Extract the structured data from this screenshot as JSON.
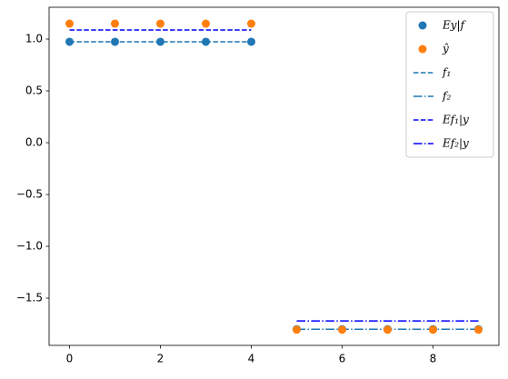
{
  "chart_data": {
    "type": "line",
    "xlim": [
      -0.45,
      9.45
    ],
    "xticks": [
      0,
      2,
      4,
      6,
      8
    ],
    "ylim": [
      -1.956,
      1.307
    ],
    "yticks": [
      {
        "value": -1.5,
        "label": "−1.5"
      },
      {
        "value": -1.0,
        "label": "−1.0"
      },
      {
        "value": -0.5,
        "label": "−0.5"
      },
      {
        "value": 0.0,
        "label": "0.0"
      },
      {
        "value": 0.5,
        "label": "0.5"
      },
      {
        "value": 1.0,
        "label": "1.0"
      }
    ],
    "legend": "upper right",
    "series": [
      {
        "name": "Ey|f",
        "kind": "scatter",
        "color": "#1f77b4",
        "x": [
          0,
          1,
          2,
          3,
          4,
          5,
          6,
          7,
          8,
          9
        ],
        "values": [
          0.974,
          0.974,
          0.974,
          0.974,
          0.974,
          -1.8,
          -1.8,
          -1.8,
          -1.8,
          -1.8
        ]
      },
      {
        "name": "ŷ",
        "kind": "scatter",
        "color": "#ff7f0e",
        "x": [
          0,
          1,
          2,
          3,
          4,
          5,
          6,
          7,
          8,
          9
        ],
        "values": [
          1.149,
          1.149,
          1.149,
          1.149,
          1.149,
          -1.805,
          -1.805,
          -1.805,
          -1.805,
          -1.805
        ]
      },
      {
        "name": "f₁",
        "kind": "line",
        "dash": "dashed",
        "color": "#1f77b4",
        "x": [
          0,
          4
        ],
        "values": [
          0.974,
          0.974
        ]
      },
      {
        "name": "f₂",
        "kind": "line",
        "dash": "dashdot",
        "color": "#1f77b4",
        "x": [
          5,
          9
        ],
        "values": [
          -1.8,
          -1.8
        ]
      },
      {
        "name": "Ef₁|y",
        "kind": "line",
        "dash": "dashed",
        "color": "#0000ff",
        "x": [
          0,
          4
        ],
        "values": [
          1.088,
          1.088
        ]
      },
      {
        "name": "Ef₂|y",
        "kind": "line",
        "dash": "dashdot",
        "color": "#0000ff",
        "x": [
          5,
          9
        ],
        "values": [
          -1.72,
          -1.72
        ]
      }
    ]
  }
}
